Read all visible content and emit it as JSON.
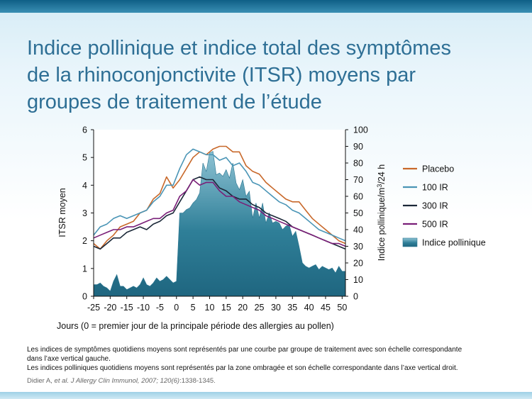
{
  "slide": {
    "title_lines": [
      "Indice pollinique et indice total des symptômes",
      "de la rhinoconjonctivite (ITSR) moyens par",
      "groupes de traitement de l’étude"
    ],
    "notes": [
      "Les indices de symptômes quotidiens moyens sont représentés par une courbe par groupe de traitement avec son échelle correspondante",
      "dans l’axe vertical gauche.",
      "Les indices polliniques quotidiens moyens sont représentés par la zone ombragée et son échelle correspondante dans l’axe vertical droit."
    ],
    "citation": {
      "author": "Didier A, ",
      "journal": "et al. J Allergy Clin Immunol, 2007; 120(6)",
      "pages": ":1338-1345."
    }
  },
  "colors": {
    "placebo": "#c8682a",
    "ir100": "#4a95b6",
    "ir300": "#1b2838",
    "ir500": "#7a1f78",
    "pollen": "#2f7f98",
    "title": "#2e6f95"
  },
  "chart_data": {
    "type": "line",
    "xlabel": "Jours (0 = premier jour de la principale période des allergies au pollen)",
    "ylabel": "ITSR moyen",
    "y2label_prefix": "Indice pollinique/m",
    "y2label_sup": "3",
    "y2label_suffix": "/24 h",
    "xlim": [
      -25,
      51
    ],
    "ylim": [
      0,
      6
    ],
    "y2lim": [
      0,
      100
    ],
    "xticks": [
      -25,
      -20,
      -15,
      -10,
      -5,
      0,
      5,
      10,
      15,
      20,
      25,
      30,
      35,
      40,
      45,
      50
    ],
    "yticks": [
      0,
      1,
      2,
      3,
      4,
      5,
      6
    ],
    "y2ticks": [
      0,
      10,
      20,
      30,
      40,
      50,
      60,
      70,
      80,
      90,
      100
    ],
    "legend_position": "right",
    "legend": [
      "Placebo",
      "100 IR",
      "300 IR",
      "500 IR",
      "Indice pollinique"
    ],
    "x": [
      -25,
      -23,
      -21,
      -19,
      -17,
      -15,
      -13,
      -11,
      -9,
      -7,
      -5,
      -3,
      -1,
      1,
      3,
      5,
      7,
      9,
      11,
      13,
      15,
      17,
      19,
      21,
      23,
      25,
      27,
      29,
      31,
      33,
      35,
      37,
      39,
      41,
      43,
      45,
      47,
      49,
      51
    ],
    "series": [
      {
        "name": "Placebo",
        "key": "placebo",
        "values": [
          1.9,
          1.7,
          2.0,
          2.2,
          2.5,
          2.6,
          2.7,
          3.0,
          3.1,
          3.5,
          3.7,
          4.3,
          3.9,
          4.2,
          4.6,
          5.0,
          5.2,
          5.1,
          5.3,
          5.4,
          5.4,
          5.2,
          5.2,
          4.7,
          4.5,
          4.4,
          4.1,
          3.9,
          3.7,
          3.5,
          3.4,
          3.4,
          3.1,
          2.8,
          2.6,
          2.4,
          2.2,
          2.0,
          1.9
        ]
      },
      {
        "name": "100 IR",
        "key": "ir100",
        "values": [
          2.2,
          2.5,
          2.6,
          2.8,
          2.9,
          2.8,
          2.9,
          3.0,
          3.1,
          3.4,
          3.6,
          4.0,
          4.0,
          4.6,
          5.1,
          5.3,
          5.2,
          5.1,
          5.1,
          4.9,
          5.0,
          4.7,
          4.8,
          4.5,
          4.1,
          4.0,
          3.8,
          3.6,
          3.4,
          3.3,
          3.1,
          3.0,
          2.8,
          2.6,
          2.4,
          2.3,
          2.2,
          2.1,
          2.0
        ]
      },
      {
        "name": "300 IR",
        "key": "ir300",
        "values": [
          1.8,
          1.7,
          1.9,
          2.1,
          2.1,
          2.3,
          2.4,
          2.5,
          2.4,
          2.6,
          2.7,
          2.9,
          3.0,
          3.4,
          3.8,
          4.2,
          4.3,
          4.2,
          4.2,
          3.9,
          3.8,
          3.6,
          3.5,
          3.5,
          3.3,
          3.2,
          3.0,
          2.9,
          2.8,
          2.7,
          2.5,
          2.4,
          2.3,
          2.2,
          2.1,
          2.0,
          1.9,
          1.8,
          1.7
        ]
      },
      {
        "name": "500 IR",
        "key": "ir500",
        "values": [
          2.1,
          2.2,
          2.3,
          2.4,
          2.4,
          2.5,
          2.5,
          2.6,
          2.7,
          2.8,
          2.8,
          3.0,
          3.1,
          3.6,
          3.8,
          4.2,
          4.0,
          4.1,
          4.1,
          3.8,
          3.6,
          3.6,
          3.4,
          3.3,
          3.2,
          3.1,
          2.9,
          2.8,
          2.7,
          2.6,
          2.5,
          2.4,
          2.3,
          2.2,
          2.1,
          2.0,
          1.9,
          1.9,
          1.8
        ]
      }
    ],
    "pollen": {
      "name": "Indice pollinique",
      "x": [
        -25,
        -24,
        -23,
        -22,
        -21,
        -20,
        -19,
        -18,
        -17,
        -16,
        -15,
        -14,
        -13,
        -12,
        -11,
        -10,
        -9,
        -8,
        -7,
        -6,
        -5,
        -4,
        -3,
        -2,
        -1,
        0,
        1,
        2,
        3,
        4,
        5,
        6,
        7,
        8,
        9,
        10,
        11,
        12,
        13,
        14,
        15,
        16,
        17,
        18,
        19,
        20,
        21,
        22,
        23,
        24,
        25,
        26,
        27,
        28,
        29,
        30,
        31,
        32,
        33,
        34,
        35,
        36,
        37,
        38,
        39,
        40,
        41,
        42,
        43,
        44,
        45,
        46,
        47,
        48,
        49,
        50,
        51
      ],
      "values": [
        7,
        7,
        8,
        6,
        5,
        3,
        9,
        13,
        6,
        6,
        4,
        5,
        6,
        5,
        7,
        11,
        7,
        6,
        8,
        11,
        9,
        10,
        12,
        10,
        8,
        9,
        50,
        50,
        52,
        53,
        56,
        58,
        62,
        80,
        75,
        86,
        87,
        73,
        74,
        72,
        76,
        71,
        80,
        68,
        64,
        70,
        60,
        63,
        47,
        56,
        47,
        56,
        44,
        50,
        44,
        45,
        44,
        40,
        42,
        43,
        36,
        39,
        30,
        20,
        18,
        17,
        18,
        19,
        16,
        18,
        17,
        16,
        17,
        14,
        18,
        15,
        15
      ]
    }
  }
}
